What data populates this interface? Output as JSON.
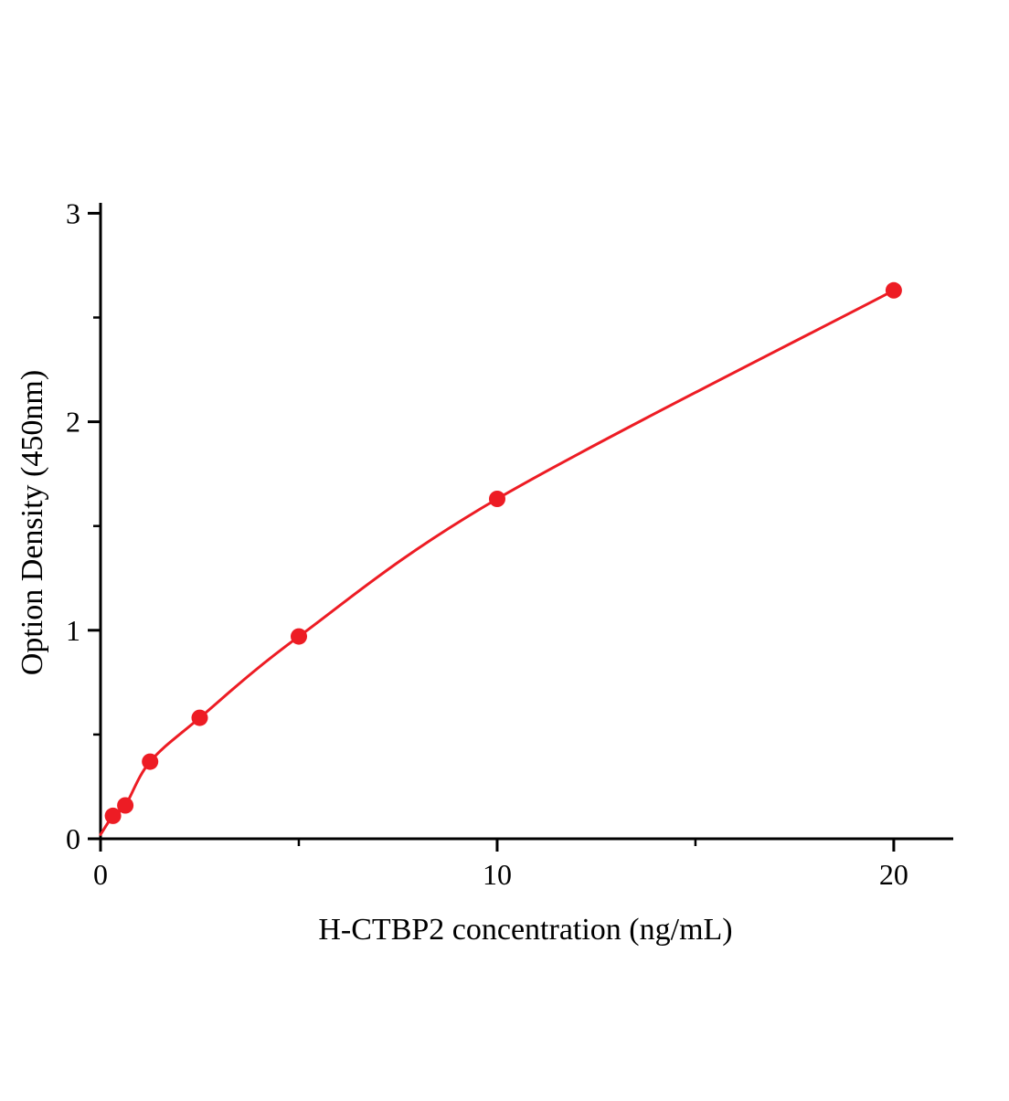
{
  "chart_data": {
    "type": "scatter",
    "title": "",
    "xlabel": "H-CTBP2 concentration (ng/mL)",
    "ylabel": "Option Density (450nm)",
    "xlim": [
      0,
      21.5
    ],
    "ylim": [
      0,
      3.05
    ],
    "grid": false,
    "legend": null,
    "line_color": "#ED1C24",
    "marker_color": "#ED1C24",
    "axis_color": "#000000",
    "marker_radius": 9,
    "line_width": 3,
    "curve_start": [
      0,
      0.02
    ],
    "series": [
      {
        "name": "H-CTBP2 standard curve",
        "points": [
          [
            0.313,
            0.11
          ],
          [
            0.625,
            0.16
          ],
          [
            1.25,
            0.37
          ],
          [
            2.5,
            0.58
          ],
          [
            5,
            0.97
          ],
          [
            10,
            1.63
          ],
          [
            20,
            2.63
          ]
        ]
      }
    ],
    "x_major_ticks": [
      {
        "value": 0,
        "label": "0"
      },
      {
        "value": 10,
        "label": "10"
      },
      {
        "value": 20,
        "label": "20"
      }
    ],
    "x_minor_ticks": [
      5,
      15
    ],
    "y_major_ticks": [
      {
        "value": 0,
        "label": "0"
      },
      {
        "value": 1,
        "label": "1"
      },
      {
        "value": 2,
        "label": "2"
      },
      {
        "value": 3,
        "label": "3"
      }
    ],
    "y_minor_ticks": [
      0.5,
      1.5,
      2.5
    ]
  }
}
